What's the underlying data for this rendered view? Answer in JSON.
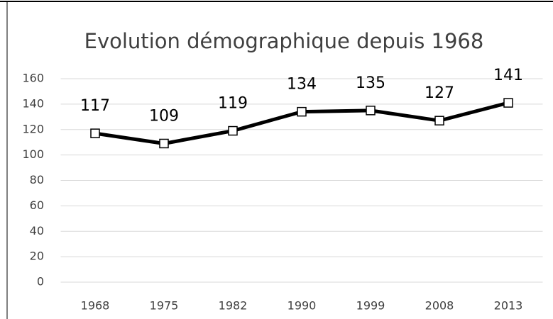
{
  "chart_data": {
    "type": "line",
    "title": "Evolution démographique depuis 1968",
    "categories": [
      "1968",
      "1975",
      "1982",
      "1990",
      "1999",
      "2008",
      "2013"
    ],
    "series": [
      {
        "color": "#000000",
        "values": [
          117,
          109,
          119,
          134,
          135,
          127,
          141
        ]
      }
    ],
    "ylim": [
      0,
      160
    ],
    "yticks": [
      0,
      20,
      40,
      60,
      80,
      100,
      120,
      140,
      160
    ],
    "grid": true
  }
}
